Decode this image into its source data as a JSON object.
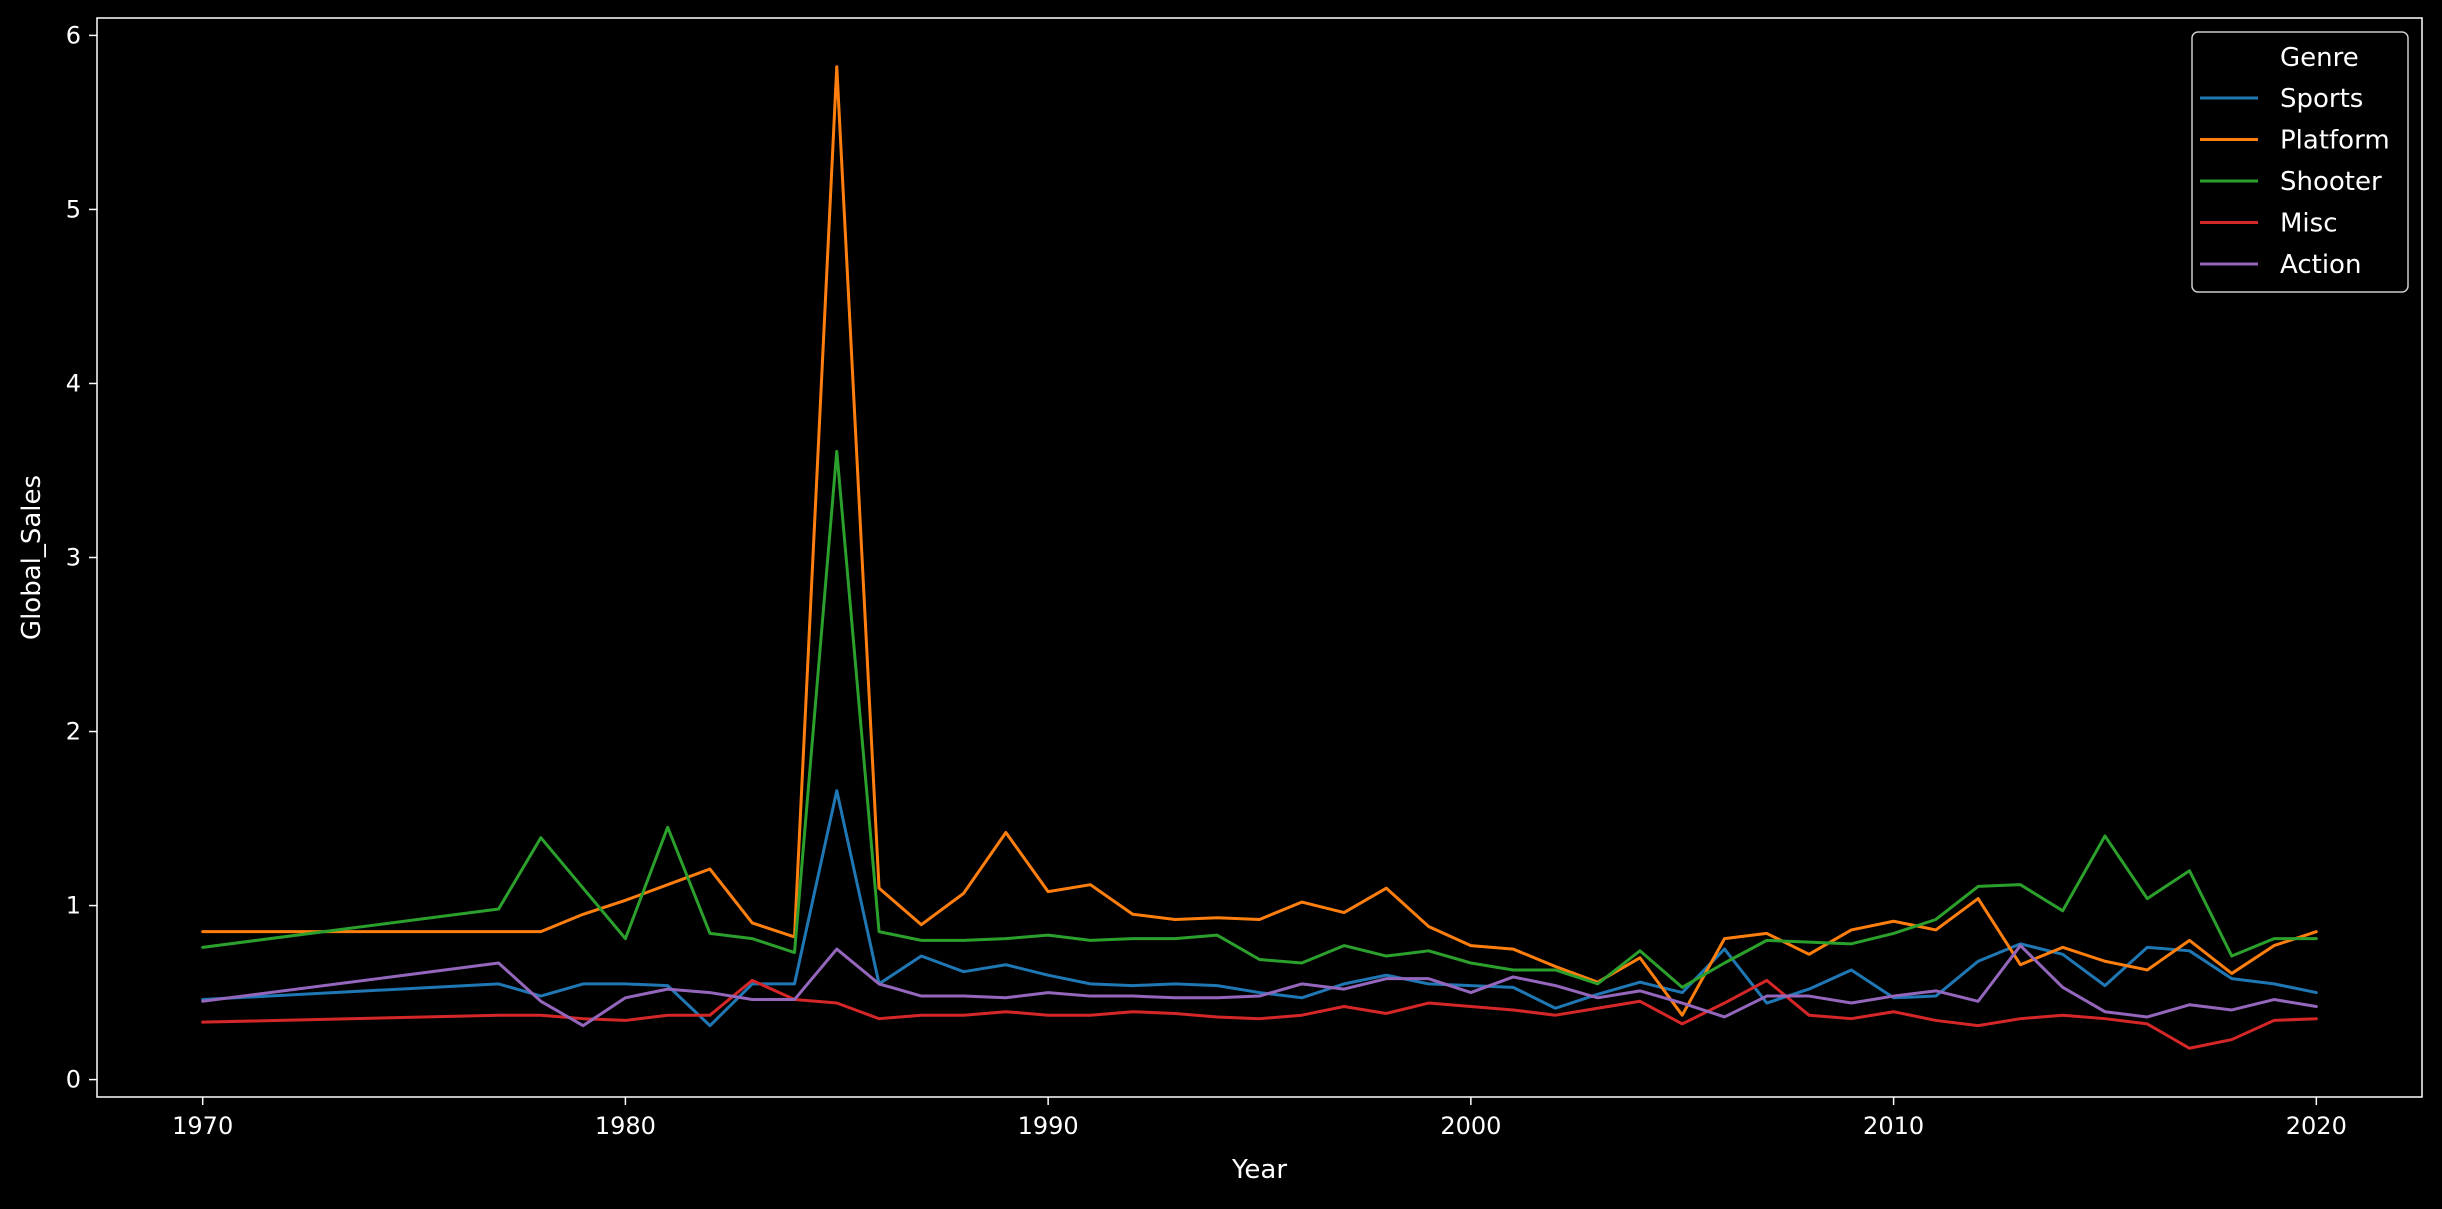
{
  "chart_data": {
    "type": "line",
    "xlabel": "Year",
    "ylabel": "Global_Sales",
    "xlim": [
      1967.5,
      2022.5
    ],
    "ylim": [
      -0.1,
      6.1
    ],
    "xticks": [
      1970,
      1980,
      1990,
      2000,
      2010,
      2020
    ],
    "yticks": [
      0,
      1,
      2,
      3,
      4,
      5,
      6
    ],
    "grid": false,
    "legend": {
      "title": "Genre",
      "placement": "top-right"
    },
    "series": [
      {
        "name": "Sports",
        "color": "#1f77b4",
        "points": [
          [
            1970,
            0.46
          ],
          [
            1977,
            0.55
          ],
          [
            1978,
            0.48
          ],
          [
            1979,
            0.55
          ],
          [
            1980,
            0.55
          ],
          [
            1981,
            0.54
          ],
          [
            1982,
            0.31
          ],
          [
            1983,
            0.55
          ],
          [
            1984,
            0.55
          ],
          [
            1985,
            1.66
          ],
          [
            1986,
            0.55
          ],
          [
            1987,
            0.71
          ],
          [
            1988,
            0.62
          ],
          [
            1989,
            0.66
          ],
          [
            1990,
            0.6
          ],
          [
            1991,
            0.55
          ],
          [
            1992,
            0.54
          ],
          [
            1993,
            0.55
          ],
          [
            1994,
            0.54
          ],
          [
            1995,
            0.5
          ],
          [
            1996,
            0.47
          ],
          [
            1997,
            0.55
          ],
          [
            1998,
            0.6
          ],
          [
            1999,
            0.55
          ],
          [
            2000,
            0.54
          ],
          [
            2001,
            0.53
          ],
          [
            2002,
            0.41
          ],
          [
            2003,
            0.49
          ],
          [
            2004,
            0.56
          ],
          [
            2005,
            0.5
          ],
          [
            2006,
            0.75
          ],
          [
            2007,
            0.44
          ],
          [
            2008,
            0.52
          ],
          [
            2009,
            0.63
          ],
          [
            2010,
            0.47
          ],
          [
            2011,
            0.48
          ],
          [
            2012,
            0.68
          ],
          [
            2013,
            0.78
          ],
          [
            2014,
            0.72
          ],
          [
            2015,
            0.54
          ],
          [
            2016,
            0.76
          ],
          [
            2017,
            0.74
          ],
          [
            2018,
            0.58
          ],
          [
            2019,
            0.55
          ],
          [
            2020,
            0.5
          ]
        ]
      },
      {
        "name": "Platform",
        "color": "#ff7f0e",
        "points": [
          [
            1970,
            0.85
          ],
          [
            1978,
            0.85
          ],
          [
            1979,
            0.95
          ],
          [
            1980,
            1.03
          ],
          [
            1981,
            1.12
          ],
          [
            1982,
            1.21
          ],
          [
            1983,
            0.9
          ],
          [
            1984,
            0.82
          ],
          [
            1985,
            5.82
          ],
          [
            1986,
            1.1
          ],
          [
            1987,
            0.89
          ],
          [
            1988,
            1.07
          ],
          [
            1989,
            1.42
          ],
          [
            1990,
            1.08
          ],
          [
            1991,
            1.12
          ],
          [
            1992,
            0.95
          ],
          [
            1993,
            0.92
          ],
          [
            1994,
            0.93
          ],
          [
            1995,
            0.92
          ],
          [
            1996,
            1.02
          ],
          [
            1997,
            0.96
          ],
          [
            1998,
            1.1
          ],
          [
            1999,
            0.88
          ],
          [
            2000,
            0.77
          ],
          [
            2001,
            0.75
          ],
          [
            2002,
            0.65
          ],
          [
            2003,
            0.56
          ],
          [
            2004,
            0.7
          ],
          [
            2005,
            0.37
          ],
          [
            2006,
            0.81
          ],
          [
            2007,
            0.84
          ],
          [
            2008,
            0.72
          ],
          [
            2009,
            0.86
          ],
          [
            2010,
            0.91
          ],
          [
            2011,
            0.86
          ],
          [
            2012,
            1.04
          ],
          [
            2013,
            0.66
          ],
          [
            2014,
            0.76
          ],
          [
            2015,
            0.68
          ],
          [
            2016,
            0.63
          ],
          [
            2017,
            0.8
          ],
          [
            2018,
            0.61
          ],
          [
            2019,
            0.77
          ],
          [
            2020,
            0.85
          ]
        ]
      },
      {
        "name": "Shooter",
        "color": "#2ca02c",
        "points": [
          [
            1970,
            0.76
          ],
          [
            1977,
            0.98
          ],
          [
            1978,
            1.39
          ],
          [
            1979,
            1.1
          ],
          [
            1980,
            0.81
          ],
          [
            1981,
            1.45
          ],
          [
            1982,
            0.84
          ],
          [
            1983,
            0.81
          ],
          [
            1984,
            0.73
          ],
          [
            1985,
            3.61
          ],
          [
            1986,
            0.85
          ],
          [
            1987,
            0.8
          ],
          [
            1988,
            0.8
          ],
          [
            1989,
            0.81
          ],
          [
            1990,
            0.83
          ],
          [
            1991,
            0.8
          ],
          [
            1992,
            0.81
          ],
          [
            1993,
            0.81
          ],
          [
            1994,
            0.83
          ],
          [
            1995,
            0.69
          ],
          [
            1996,
            0.67
          ],
          [
            1997,
            0.77
          ],
          [
            1998,
            0.71
          ],
          [
            1999,
            0.74
          ],
          [
            2000,
            0.67
          ],
          [
            2001,
            0.63
          ],
          [
            2002,
            0.63
          ],
          [
            2003,
            0.55
          ],
          [
            2004,
            0.74
          ],
          [
            2005,
            0.53
          ],
          [
            2006,
            0.67
          ],
          [
            2007,
            0.8
          ],
          [
            2008,
            0.79
          ],
          [
            2009,
            0.78
          ],
          [
            2010,
            0.84
          ],
          [
            2011,
            0.92
          ],
          [
            2012,
            1.11
          ],
          [
            2013,
            1.12
          ],
          [
            2014,
            0.97
          ],
          [
            2015,
            1.4
          ],
          [
            2016,
            1.04
          ],
          [
            2017,
            1.2
          ],
          [
            2018,
            0.71
          ],
          [
            2019,
            0.81
          ],
          [
            2020,
            0.81
          ]
        ]
      },
      {
        "name": "Misc",
        "color": "#d62728",
        "points": [
          [
            1970,
            0.33
          ],
          [
            1977,
            0.37
          ],
          [
            1978,
            0.37
          ],
          [
            1979,
            0.35
          ],
          [
            1980,
            0.34
          ],
          [
            1981,
            0.37
          ],
          [
            1982,
            0.37
          ],
          [
            1983,
            0.57
          ],
          [
            1984,
            0.46
          ],
          [
            1985,
            0.44
          ],
          [
            1986,
            0.35
          ],
          [
            1987,
            0.37
          ],
          [
            1988,
            0.37
          ],
          [
            1989,
            0.39
          ],
          [
            1990,
            0.37
          ],
          [
            1991,
            0.37
          ],
          [
            1992,
            0.39
          ],
          [
            1993,
            0.38
          ],
          [
            1994,
            0.36
          ],
          [
            1995,
            0.35
          ],
          [
            1996,
            0.37
          ],
          [
            1997,
            0.42
          ],
          [
            1998,
            0.38
          ],
          [
            1999,
            0.44
          ],
          [
            2000,
            0.42
          ],
          [
            2001,
            0.4
          ],
          [
            2002,
            0.37
          ],
          [
            2003,
            0.41
          ],
          [
            2004,
            0.45
          ],
          [
            2005,
            0.32
          ],
          [
            2006,
            0.44
          ],
          [
            2007,
            0.57
          ],
          [
            2008,
            0.37
          ],
          [
            2009,
            0.35
          ],
          [
            2010,
            0.39
          ],
          [
            2011,
            0.34
          ],
          [
            2012,
            0.31
          ],
          [
            2013,
            0.35
          ],
          [
            2014,
            0.37
          ],
          [
            2015,
            0.35
          ],
          [
            2016,
            0.32
          ],
          [
            2017,
            0.18
          ],
          [
            2018,
            0.23
          ],
          [
            2019,
            0.34
          ],
          [
            2020,
            0.35
          ]
        ]
      },
      {
        "name": "Action",
        "color": "#9467bd",
        "points": [
          [
            1970,
            0.45
          ],
          [
            1977,
            0.67
          ],
          [
            1978,
            0.45
          ],
          [
            1979,
            0.31
          ],
          [
            1980,
            0.47
          ],
          [
            1981,
            0.52
          ],
          [
            1982,
            0.5
          ],
          [
            1983,
            0.46
          ],
          [
            1984,
            0.46
          ],
          [
            1985,
            0.75
          ],
          [
            1986,
            0.55
          ],
          [
            1987,
            0.48
          ],
          [
            1988,
            0.48
          ],
          [
            1989,
            0.47
          ],
          [
            1990,
            0.5
          ],
          [
            1991,
            0.48
          ],
          [
            1992,
            0.48
          ],
          [
            1993,
            0.47
          ],
          [
            1994,
            0.47
          ],
          [
            1995,
            0.48
          ],
          [
            1996,
            0.55
          ],
          [
            1997,
            0.52
          ],
          [
            1998,
            0.58
          ],
          [
            1999,
            0.58
          ],
          [
            2000,
            0.5
          ],
          [
            2001,
            0.59
          ],
          [
            2002,
            0.54
          ],
          [
            2003,
            0.47
          ],
          [
            2004,
            0.51
          ],
          [
            2005,
            0.44
          ],
          [
            2006,
            0.36
          ],
          [
            2007,
            0.48
          ],
          [
            2008,
            0.48
          ],
          [
            2009,
            0.44
          ],
          [
            2010,
            0.48
          ],
          [
            2011,
            0.51
          ],
          [
            2012,
            0.45
          ],
          [
            2013,
            0.77
          ],
          [
            2014,
            0.53
          ],
          [
            2015,
            0.39
          ],
          [
            2016,
            0.36
          ],
          [
            2017,
            0.43
          ],
          [
            2018,
            0.4
          ],
          [
            2019,
            0.46
          ],
          [
            2020,
            0.42
          ]
        ]
      }
    ]
  }
}
